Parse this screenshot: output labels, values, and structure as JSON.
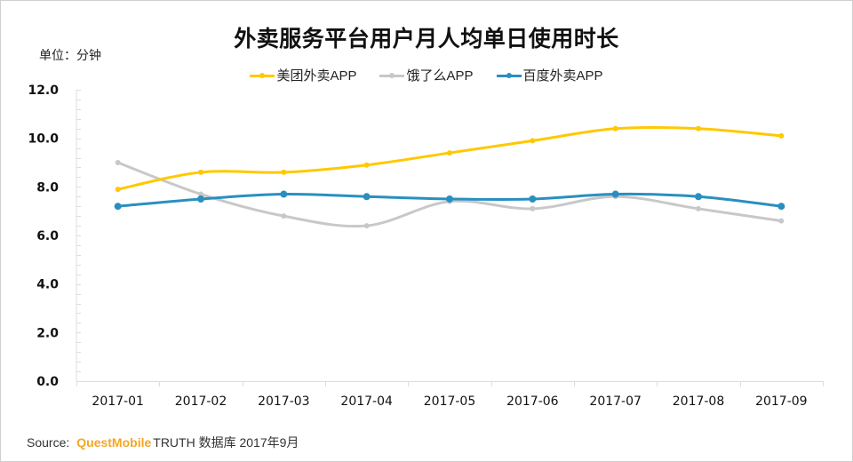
{
  "chart_data": {
    "type": "line",
    "title": "外卖服务平台用户月人均单日使用时长",
    "unit_label": "单位：分钟",
    "xlabel": "",
    "ylabel": "分钟",
    "ylim": [
      0,
      12
    ],
    "yticks": [
      "0.0",
      "2.0",
      "4.0",
      "6.0",
      "8.0",
      "10.0",
      "12.0"
    ],
    "ytick_values": [
      0,
      2,
      4,
      6,
      8,
      10,
      12
    ],
    "grid": false,
    "smooth": true,
    "legend_position": "top-center",
    "categories": [
      "2017-01",
      "2017-02",
      "2017-03",
      "2017-04",
      "2017-05",
      "2017-06",
      "2017-07",
      "2017-08",
      "2017-09"
    ],
    "series": [
      {
        "name": "美团外卖APP",
        "color": "#ffc800",
        "values": [
          7.9,
          8.6,
          8.6,
          8.9,
          9.4,
          9.9,
          10.4,
          10.4,
          10.1
        ]
      },
      {
        "name": "饿了么APP",
        "color": "#c8c8c8",
        "values": [
          9.0,
          7.7,
          6.8,
          6.4,
          7.4,
          7.1,
          7.6,
          7.1,
          6.6
        ]
      },
      {
        "name": "百度外卖APP",
        "color": "#2a8fc0",
        "values": [
          7.2,
          7.5,
          7.7,
          7.6,
          7.5,
          7.5,
          7.7,
          7.6,
          7.2
        ]
      }
    ]
  },
  "source": {
    "prefix": "Source:",
    "brand": "QuestMobile",
    "suffix": "TRUTH 数据库 2017年9月"
  }
}
